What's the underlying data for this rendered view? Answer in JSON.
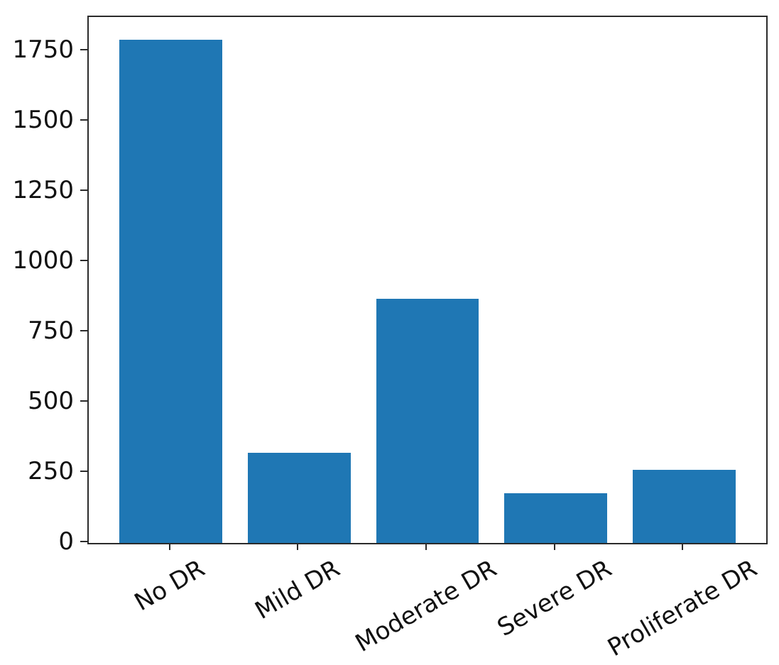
{
  "chart_data": {
    "type": "bar",
    "title": "",
    "xlabel": "",
    "ylabel": "",
    "categories": [
      "No DR",
      "Mild DR",
      "Moderate DR",
      "Severe DR",
      "Proliferate DR"
    ],
    "values": [
      1790,
      320,
      870,
      178,
      260
    ],
    "yticks": [
      0,
      250,
      500,
      750,
      1000,
      1250,
      1500,
      1750
    ],
    "ylim": [
      0,
      1872
    ],
    "xtick_rotation_deg": 30,
    "bar_width_fraction": 0.8,
    "bar_color": "#1f77b4",
    "axis_color": "#2b2b2b",
    "text_color": "#111111",
    "background": "#ffffff",
    "grid": false,
    "legend": "none"
  }
}
